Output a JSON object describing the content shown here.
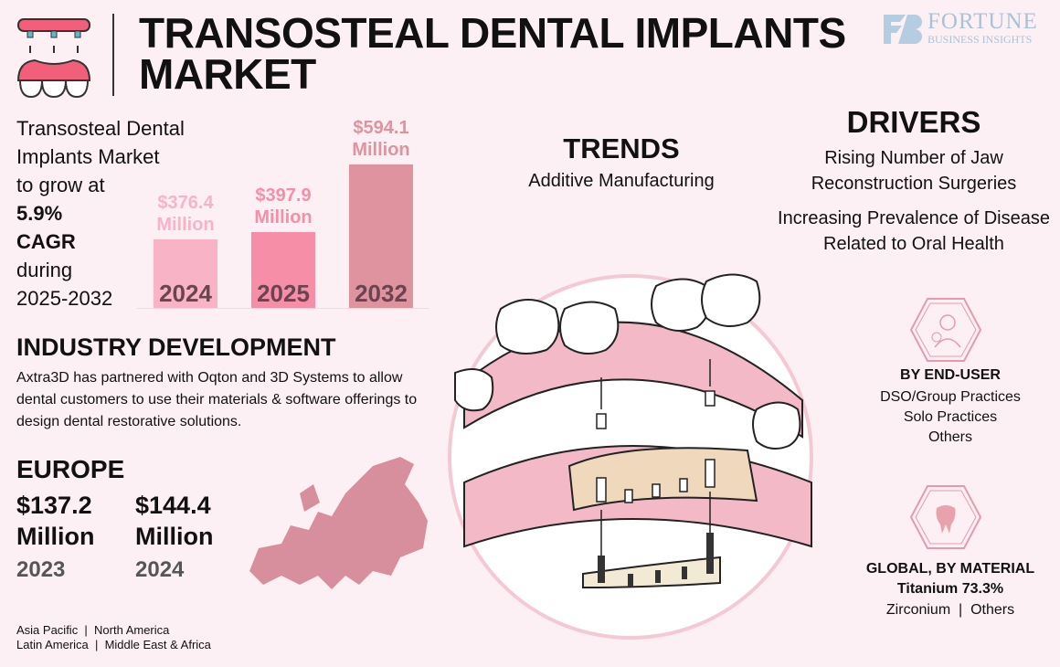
{
  "header": {
    "title_line1": "TRANSOSTEAL DENTAL IMPLANTS",
    "title_line2": "MARKET",
    "logo_icon": "denture-implant-icon",
    "brand": "FORTUNE",
    "brand_sub": "BUSINESS INSIGHTS"
  },
  "intro": {
    "line1": "Transosteal Dental",
    "line2": "Implants Market",
    "line3": "to grow at",
    "cagr": "5.9%",
    "cagr_label": "CAGR",
    "line4": "during",
    "period": "2025-2032"
  },
  "chart_data": {
    "type": "bar",
    "categories": [
      "2024",
      "2025",
      "2032"
    ],
    "values": [
      376.4,
      397.9,
      594.1
    ],
    "labels": [
      "$376.4",
      "$397.9",
      "$594.1"
    ],
    "unit": "Million",
    "colors": [
      "#f9b3c6",
      "#f78ea8",
      "#df939f"
    ]
  },
  "trends": {
    "heading": "TRENDS",
    "item": "Additive Manufacturing"
  },
  "drivers": {
    "heading": "DRIVERS",
    "items": [
      "Rising Number of Jaw Reconstruction Surgeries",
      "Increasing Prevalence of Disease Related to Oral Health"
    ]
  },
  "industry": {
    "heading": "INDUSTRY DEVELOPMENT",
    "text": "Axtra3D has partnered with Oqton and 3D Systems to allow dental customers to use their materials & software offerings to design dental restorative solutions."
  },
  "europe": {
    "heading": "EUROPE",
    "values": [
      {
        "amount": "$137.2",
        "unit": "Million",
        "year": "2023"
      },
      {
        "amount": "$144.4",
        "unit": "Million",
        "year": "2024"
      }
    ],
    "regions_line1": "Asia Pacific  |  North America",
    "regions_line2": "Latin America  |  Middle East & Africa"
  },
  "end_user": {
    "icon": "dentist-icon",
    "heading": "BY END-USER",
    "items": [
      "DSO/Group Practices",
      "Solo Practices",
      "Others"
    ]
  },
  "material": {
    "icon": "tooth-icon",
    "heading": "GLOBAL, BY MATERIAL",
    "lead": "Titanium 73.3%",
    "others": "Zirconium  |  Others"
  }
}
